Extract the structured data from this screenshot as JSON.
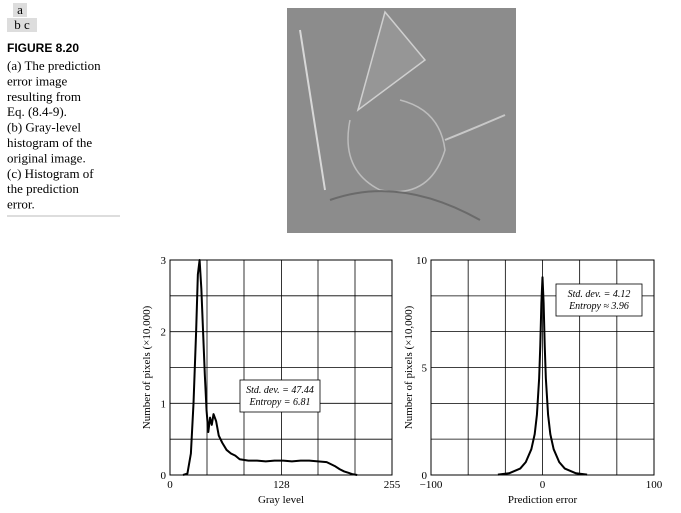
{
  "panel_key": [
    "a",
    "b c"
  ],
  "caption": {
    "title": "FIGURE 8.20",
    "lines": [
      "(a) The prediction",
      "error image",
      "resulting from",
      "Eq. (8.4-9).",
      "(b) Gray-level",
      "histogram of the",
      "original image.",
      "(c) Histogram of",
      "the prediction",
      "error."
    ]
  },
  "chart_data": [
    {
      "type": "line",
      "color": "#000000",
      "x": [
        15,
        20,
        24,
        27,
        30,
        32,
        34,
        36,
        38,
        40,
        42,
        44,
        46,
        48,
        50,
        53,
        56,
        60,
        65,
        70,
        75,
        80,
        90,
        100,
        110,
        120,
        130,
        140,
        150,
        160,
        170,
        180,
        190,
        195,
        200,
        205,
        210,
        215
      ],
      "values": [
        0,
        0.02,
        0.3,
        1.0,
        2.0,
        2.8,
        3.0,
        2.6,
        2.0,
        1.4,
        0.9,
        0.6,
        0.8,
        0.7,
        0.85,
        0.75,
        0.55,
        0.45,
        0.35,
        0.3,
        0.27,
        0.22,
        0.2,
        0.2,
        0.19,
        0.2,
        0.2,
        0.19,
        0.2,
        0.2,
        0.19,
        0.18,
        0.12,
        0.08,
        0.05,
        0.03,
        0.01,
        0
      ],
      "xlim": [
        0,
        255
      ],
      "ylim": [
        0,
        3
      ],
      "xticks": [
        0,
        128,
        255
      ],
      "yticks": [
        0,
        1,
        2,
        3
      ],
      "x_minor_ticks": [
        42.5,
        85,
        170,
        212.5
      ],
      "y_minor_ticks": [
        0.5,
        1.5,
        2.5
      ],
      "xlabel": "Gray level",
      "ylabel": "Number of pixels (×10,000)",
      "annotation": [
        "Std. dev. = 47.44",
        "Entropy = 6.81"
      ]
    },
    {
      "type": "line",
      "color": "#000000",
      "x": [
        -40,
        -30,
        -20,
        -15,
        -10,
        -7,
        -5,
        -3,
        -2,
        -1,
        0,
        1,
        2,
        3,
        5,
        7,
        10,
        15,
        20,
        30,
        40
      ],
      "values": [
        0.02,
        0.08,
        0.3,
        0.6,
        1.2,
        1.9,
        2.8,
        4.5,
        6.0,
        8.0,
        9.2,
        8.0,
        6.0,
        4.5,
        2.8,
        1.9,
        1.2,
        0.6,
        0.3,
        0.08,
        0.02
      ],
      "xlim": [
        -100,
        100
      ],
      "ylim": [
        0,
        10
      ],
      "xticks": [
        {
          "value": -100,
          "label": "−100"
        },
        0,
        100
      ],
      "yticks": [
        0,
        5,
        10
      ],
      "x_minor_ticks": [
        -66.67,
        -33.33,
        33.33,
        66.67
      ],
      "y_minor_ticks": [
        1.67,
        3.33,
        6.67,
        8.33
      ],
      "xlabel": "Prediction error",
      "ylabel": "Number of pixels (×10,000)",
      "annotation": [
        "Std. dev. = 4.12",
        "Entropy ≈ 3.96"
      ]
    }
  ]
}
